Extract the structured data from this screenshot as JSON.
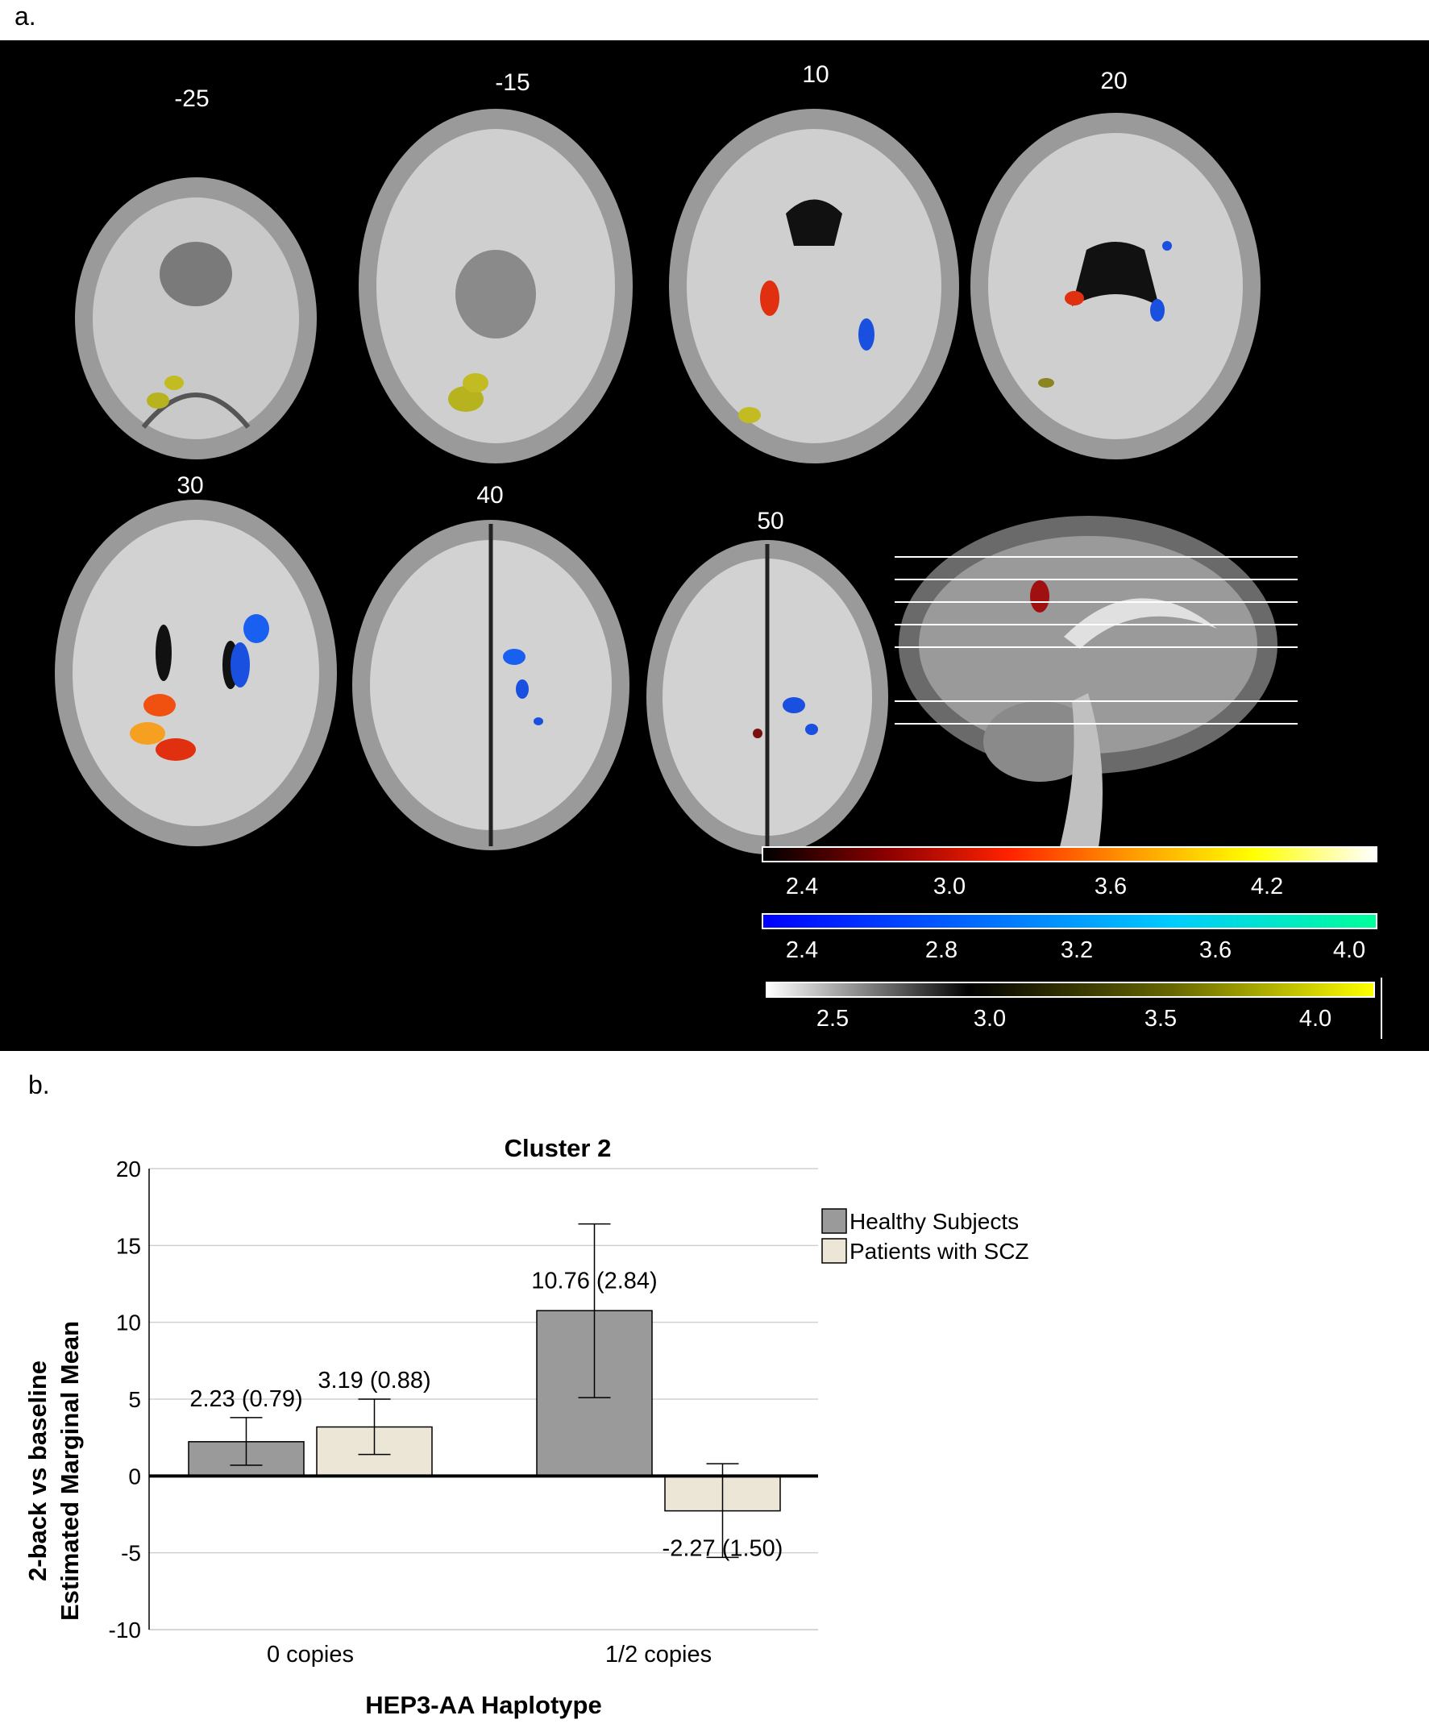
{
  "panel_a": {
    "label": "a.",
    "slices": [
      "-25",
      "-15",
      "10",
      "20",
      "30",
      "40",
      "50"
    ],
    "colorbars": [
      {
        "ticks": [
          "2.4",
          "3.0",
          "3.6",
          "4.2"
        ],
        "gradient": [
          "#000000",
          "#8b0000",
          "#ff2200",
          "#ff9900",
          "#ffff00",
          "#ffffff"
        ]
      },
      {
        "ticks": [
          "2.4",
          "2.8",
          "3.2",
          "3.6",
          "4.0"
        ],
        "gradient": [
          "#0000ff",
          "#0066ff",
          "#00ccff",
          "#00ff99"
        ]
      },
      {
        "ticks": [
          "2.5",
          "3.0",
          "3.5",
          "4.0"
        ],
        "gradient": [
          "#ffffff",
          "#000000",
          "#666600",
          "#ffff00"
        ]
      }
    ]
  },
  "panel_b": {
    "label": "b."
  },
  "chart_data": {
    "type": "bar",
    "title": "Cluster 2",
    "xlabel": "HEP3-AA Haplotype",
    "ylabel_line1": "2-back vs baseline",
    "ylabel_line2": "Estimated Marginal Mean",
    "categories": [
      "0 copies",
      "1/2 copies"
    ],
    "ylim": [
      -10,
      20
    ],
    "yticks": [
      "20",
      "15",
      "10",
      "5",
      "0",
      "-5",
      "-10"
    ],
    "series": [
      {
        "name": "Healthy Subjects",
        "color": "#9a9a9a",
        "values": [
          2.23,
          10.76
        ],
        "err_low": [
          0.7,
          5.1
        ],
        "err_high": [
          3.8,
          16.4
        ],
        "labels": [
          "2.23 (0.79)",
          "10.76 (2.84)"
        ]
      },
      {
        "name": "Patients with SCZ",
        "color": "#ece6d6",
        "values": [
          3.19,
          -2.27
        ],
        "err_low": [
          1.4,
          -5.3
        ],
        "err_high": [
          5.0,
          0.8
        ],
        "labels": [
          "3.19 (0.88)",
          "-2.27 (1.50)"
        ]
      }
    ],
    "grid": true,
    "legend": "top-right"
  }
}
